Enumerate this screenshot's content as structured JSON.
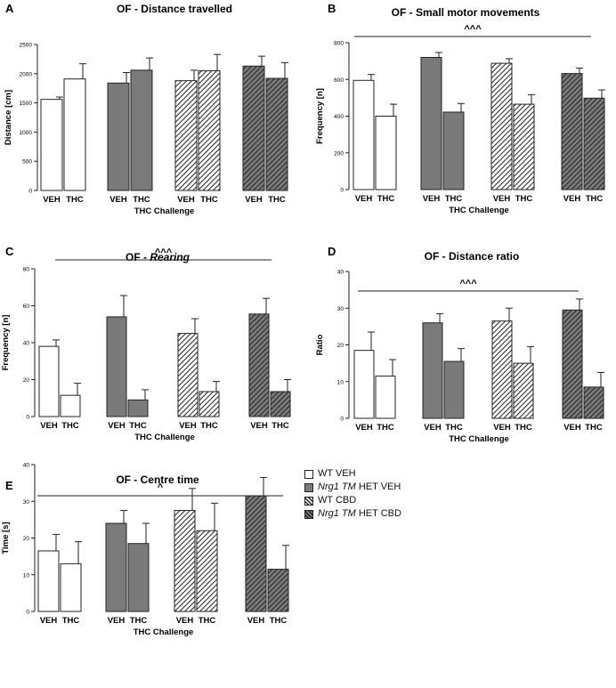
{
  "legend": {
    "wt_veh": "WT VEH",
    "het_veh_italic": "Nrg1 TM",
    "het_veh_rest": " HET VEH",
    "wt_cbd": "WT CBD",
    "het_cbd_italic": "Nrg1 TM",
    "het_cbd_rest": " HET CBD"
  },
  "colors": {
    "white": "#ffffff",
    "het": "#7a7a7a",
    "stroke": "#222222",
    "hatch": "#222222"
  },
  "chart_data": [
    {
      "type": "bar",
      "panel": "A",
      "title": "OF - Distance travelled",
      "ylabel": "Distance [cm]",
      "xlabel": "THC Challenge",
      "ylim": [
        0,
        2500
      ],
      "yticks": [
        0,
        500,
        1000,
        1500,
        2000,
        2500
      ],
      "categories": [
        "VEH",
        "THC",
        "VEH",
        "THC",
        "VEH",
        "THC",
        "VEH",
        "THC"
      ],
      "groups": [
        "WT VEH",
        "Nrg1 TM HET VEH",
        "WT CBD",
        "Nrg1 TM HET CBD"
      ],
      "values": [
        1560,
        1910,
        1840,
        2060,
        1880,
        2050,
        2130,
        1920
      ],
      "errors": [
        40,
        260,
        180,
        210,
        180,
        280,
        170,
        270
      ],
      "significance": null
    },
    {
      "type": "bar",
      "panel": "B",
      "title": "OF - Small motor movements",
      "ylabel": "Frequency [n]",
      "xlabel": "THC Challenge",
      "ylim": [
        0,
        800
      ],
      "yticks": [
        0,
        200,
        400,
        600,
        800
      ],
      "categories": [
        "VEH",
        "THC",
        "VEH",
        "THC",
        "VEH",
        "THC",
        "VEH",
        "THC"
      ],
      "groups": [
        "WT VEH",
        "Nrg1 TM HET VEH",
        "WT CBD",
        "Nrg1 TM HET CBD"
      ],
      "values": [
        595,
        400,
        720,
        422,
        688,
        465,
        632,
        498
      ],
      "errors": [
        32,
        65,
        27,
        47,
        25,
        52,
        30,
        45
      ],
      "significance": "^^^"
    },
    {
      "type": "bar",
      "panel": "C",
      "title_plain": "OF - ",
      "title_italic": "Rearing",
      "ylabel": "Frequency [n]",
      "xlabel": "THC Challenge",
      "ylim": [
        0,
        80
      ],
      "yticks": [
        0,
        20,
        40,
        60,
        80
      ],
      "categories": [
        "VEH",
        "THC",
        "VEH",
        "THC",
        "VEH",
        "THC",
        "VEH",
        "THC"
      ],
      "groups": [
        "WT VEH",
        "Nrg1 TM HET VEH",
        "WT CBD",
        "Nrg1 TM HET CBD"
      ],
      "values": [
        38,
        11.5,
        54,
        9,
        45,
        13.5,
        55.5,
        13.5
      ],
      "errors": [
        3.5,
        6.5,
        11.5,
        5.5,
        8,
        5.5,
        8.5,
        6.5
      ],
      "significance": "^^^"
    },
    {
      "type": "bar",
      "panel": "D",
      "title": "OF - Distance ratio",
      "ylabel": "Ratio",
      "xlabel": "THC Challenge",
      "ylim": [
        0,
        40
      ],
      "yticks": [
        0,
        10,
        20,
        30,
        40
      ],
      "categories": [
        "VEH",
        "THC",
        "VEH",
        "THC",
        "VEH",
        "THC",
        "VEH",
        "THC"
      ],
      "groups": [
        "WT VEH",
        "Nrg1 TM HET VEH",
        "WT CBD",
        "Nrg1 TM HET CBD"
      ],
      "values": [
        18.5,
        11.5,
        26,
        15.5,
        26.5,
        15,
        29.5,
        8.5
      ],
      "errors": [
        5,
        4.5,
        2.5,
        3.5,
        3.5,
        4.5,
        3,
        4
      ],
      "significance": "^^^"
    },
    {
      "type": "bar",
      "panel": "E",
      "title": "OF - Centre time",
      "ylabel": "Time [s]",
      "xlabel": "THC Challenge",
      "ylim": [
        0,
        40
      ],
      "yticks": [
        0,
        10,
        20,
        30,
        40
      ],
      "categories": [
        "VEH",
        "THC",
        "VEH",
        "THC",
        "VEH",
        "THC",
        "VEH",
        "THC"
      ],
      "groups": [
        "WT VEH",
        "Nrg1 TM HET VEH",
        "WT CBD",
        "Nrg1 TM HET CBD"
      ],
      "values": [
        16.5,
        13,
        24,
        18.5,
        27.5,
        22,
        31.5,
        11.5
      ],
      "errors": [
        4.5,
        6,
        3.5,
        5.5,
        6,
        7.5,
        5,
        6.5
      ],
      "significance": "^"
    }
  ]
}
